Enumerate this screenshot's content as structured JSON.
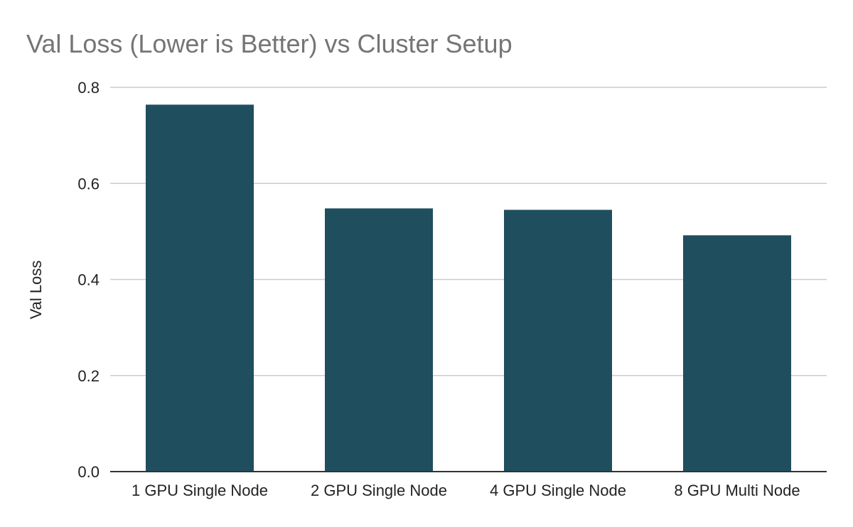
{
  "chart_data": {
    "type": "bar",
    "title": "Val Loss (Lower is Better) vs Cluster Setup",
    "xlabel": "",
    "ylabel": "Val Loss",
    "categories": [
      "1 GPU Single Node",
      "2 GPU Single Node",
      "4 GPU Single Node",
      "8 GPU Multi Node"
    ],
    "values": [
      0.764,
      0.548,
      0.545,
      0.492
    ],
    "ylim": [
      0,
      0.8
    ],
    "yticks": [
      "0.0",
      "0.2",
      "0.4",
      "0.6",
      "0.8"
    ],
    "grid": true,
    "legend": "none",
    "colors": {
      "bar": "#1f4e5f",
      "grid": "#cccccc",
      "axis": "#333333",
      "title": "#757575",
      "text": "#222222"
    }
  }
}
